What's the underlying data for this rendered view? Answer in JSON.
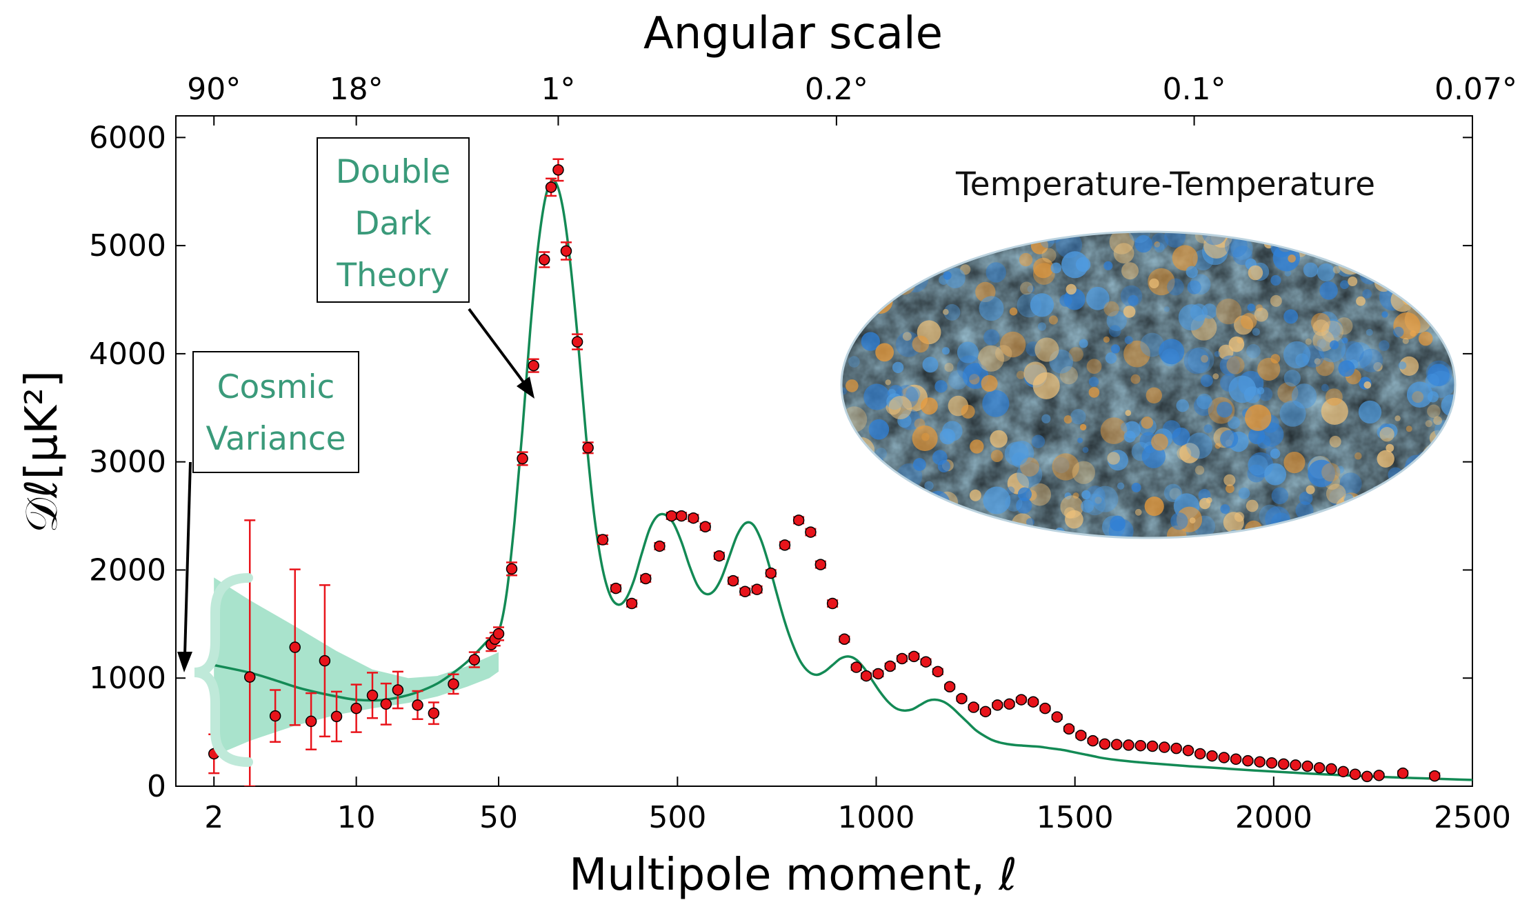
{
  "chart_data": {
    "type": "scatter",
    "title": "",
    "top_axis": {
      "label": "Angular scale",
      "ticks": [
        {
          "label": "90°",
          "at_multipole": 2
        },
        {
          "label": "18°",
          "at_multipole": 10
        },
        {
          "label": "1°",
          "at_multipole": 200
        },
        {
          "label": "0.2°",
          "at_multipole": 900
        },
        {
          "label": "0.1°",
          "at_multipole": 1800
        },
        {
          "label": "0.07°",
          "at_multipole": 2500
        }
      ]
    },
    "xlabel": "Multipole moment, ℓ",
    "ylabel": "𝒟ℓ[μK²]",
    "x_scale": "log below ℓ=50, linear from ℓ=50 to 2500",
    "xlim": [
      1.3,
      2500
    ],
    "ylim": [
      0,
      6200
    ],
    "xticks": [
      {
        "label": "2",
        "value": 2
      },
      {
        "label": "10",
        "value": 10
      },
      {
        "label": "50",
        "value": 50
      },
      {
        "label": "500",
        "value": 500
      },
      {
        "label": "1000",
        "value": 1000
      },
      {
        "label": "1500",
        "value": 1500
      },
      {
        "label": "2000",
        "value": 2000
      },
      {
        "label": "2500",
        "value": 2500
      }
    ],
    "yticks": [
      {
        "label": "0",
        "value": 0
      },
      {
        "label": "1000",
        "value": 1000
      },
      {
        "label": "2000",
        "value": 2000
      },
      {
        "label": "3000",
        "value": 3000
      },
      {
        "label": "4000",
        "value": 4000
      },
      {
        "label": "5000",
        "value": 5000
      },
      {
        "label": "6000",
        "value": 6000
      }
    ],
    "grid": false,
    "colors": {
      "data_points": "#e8141b",
      "error_bars": "#e8141b",
      "theory_curve": "#138a55",
      "cosmic_variance_band": "#a9e3cc",
      "annotation_text": "#3a9a7a"
    },
    "series": [
      {
        "type": "points_with_errors",
        "x": [
          2,
          3,
          4,
          5,
          6,
          7,
          8,
          10,
          12,
          14,
          16,
          20,
          24,
          30,
          38,
          46,
          48,
          50,
          83,
          110,
          138,
          165,
          182,
          200,
          220,
          248,
          275,
          312,
          345,
          385,
          420,
          455,
          485,
          510,
          540,
          570,
          605,
          640,
          670,
          700,
          735,
          770,
          805,
          835,
          860,
          890,
          920,
          950,
          975,
          1005,
          1035,
          1065,
          1095,
          1125,
          1155,
          1185,
          1215,
          1245,
          1275,
          1305,
          1335,
          1365,
          1395,
          1425,
          1455,
          1485,
          1515,
          1545,
          1575,
          1605,
          1635,
          1665,
          1695,
          1725,
          1755,
          1785,
          1815,
          1845,
          1875,
          1905,
          1935,
          1965,
          1995,
          2025,
          2055,
          2085,
          2115,
          2145,
          2175,
          2205,
          2235,
          2265,
          2325,
          2405
        ],
        "y": [
          300,
          1010,
          650,
          1285,
          600,
          1160,
          645,
          720,
          840,
          760,
          890,
          750,
          675,
          945,
          1170,
          1310,
          1360,
          1410,
          2010,
          3030,
          3890,
          4870,
          5540,
          5700,
          4950,
          4110,
          3130,
          2280,
          1830,
          1690,
          1920,
          2220,
          2500,
          2500,
          2480,
          2400,
          2130,
          1900,
          1800,
          1820,
          1970,
          2230,
          2460,
          2350,
          2050,
          1690,
          1360,
          1100,
          1020,
          1040,
          1110,
          1180,
          1200,
          1150,
          1060,
          920,
          810,
          730,
          690,
          750,
          760,
          800,
          780,
          720,
          640,
          530,
          470,
          420,
          390,
          385,
          380,
          375,
          370,
          360,
          350,
          330,
          300,
          280,
          265,
          250,
          235,
          225,
          215,
          205,
          195,
          185,
          170,
          160,
          135,
          110,
          90,
          100,
          120,
          95
        ],
        "yerr": [
          180,
          1450,
          240,
          720,
          260,
          700,
          230,
          220,
          210,
          190,
          170,
          130,
          100,
          90,
          70,
          60,
          60,
          60,
          60,
          60,
          60,
          70,
          80,
          100,
          80,
          70,
          50,
          40,
          30,
          30,
          30,
          30,
          30,
          30,
          30,
          30,
          30,
          30,
          30,
          30,
          30,
          30,
          30,
          30,
          30,
          30,
          25,
          25,
          25,
          25,
          25,
          25,
          25,
          25,
          25,
          20,
          20,
          20,
          20,
          20,
          20,
          20,
          20,
          20,
          20,
          20,
          20,
          20,
          15,
          15,
          15,
          15,
          15,
          15,
          15,
          15,
          15,
          15,
          15,
          15,
          15,
          15,
          15,
          15,
          15,
          15,
          15,
          15,
          15,
          15,
          15,
          15,
          20,
          25
        ]
      },
      {
        "type": "theory_curve",
        "x": [
          2,
          3,
          4,
          5,
          6,
          8,
          10,
          13,
          16,
          20,
          25,
          30,
          35,
          40,
          45,
          50,
          70,
          90,
          110,
          130,
          150,
          170,
          190,
          210,
          230,
          250,
          270,
          290,
          310,
          330,
          350,
          370,
          390,
          410,
          430,
          450,
          470,
          490,
          510,
          530,
          550,
          570,
          590,
          610,
          630,
          650,
          670,
          690,
          710,
          730,
          750,
          770,
          790,
          810,
          830,
          850,
          870,
          890,
          910,
          930,
          950,
          970,
          990,
          1010,
          1030,
          1050,
          1070,
          1090,
          1110,
          1130,
          1150,
          1170,
          1190,
          1210,
          1230,
          1250,
          1270,
          1290,
          1310,
          1330,
          1350,
          1370,
          1390,
          1410,
          1430,
          1450,
          1470,
          1490,
          1510,
          1530,
          1550,
          1570,
          1600,
          1650,
          1700,
          1750,
          1800,
          1850,
          1900,
          1950,
          2000,
          2050,
          2100,
          2150,
          2200,
          2250,
          2300,
          2350,
          2400,
          2450,
          2500
        ],
        "y": [
          1120,
          1050,
          980,
          920,
          880,
          830,
          800,
          795,
          820,
          870,
          950,
          1050,
          1150,
          1260,
          1360,
          1430,
          1780,
          2450,
          3300,
          4240,
          5010,
          5480,
          5600,
          5380,
          4850,
          4100,
          3240,
          2520,
          2040,
          1770,
          1680,
          1730,
          1900,
          2150,
          2380,
          2500,
          2510,
          2430,
          2260,
          2040,
          1860,
          1780,
          1800,
          1920,
          2120,
          2320,
          2430,
          2420,
          2280,
          2050,
          1780,
          1520,
          1310,
          1150,
          1060,
          1030,
          1060,
          1120,
          1180,
          1200,
          1170,
          1090,
          980,
          870,
          780,
          720,
          700,
          710,
          750,
          790,
          800,
          780,
          730,
          660,
          590,
          520,
          470,
          430,
          405,
          390,
          380,
          375,
          370,
          365,
          355,
          345,
          335,
          320,
          305,
          290,
          275,
          260,
          245,
          225,
          210,
          195,
          182,
          170,
          158,
          146,
          135,
          125,
          115,
          106,
          97,
          89,
          82,
          76,
          70,
          64,
          58
        ]
      },
      {
        "type": "cosmic_variance_band",
        "x": [
          2,
          3,
          5,
          8,
          12,
          18,
          25,
          35,
          45,
          50
        ],
        "upper": [
          1930,
          1720,
          1480,
          1250,
          1080,
          1000,
          1020,
          1110,
          1200,
          1240
        ],
        "lower": [
          280,
          420,
          560,
          660,
          720,
          770,
          830,
          920,
          1000,
          1060
        ]
      }
    ],
    "annotations": [
      {
        "text": "Double Dark Theory",
        "lines": [
          "Double",
          "Dark",
          "Theory"
        ],
        "arrow_to_multipole": 75
      },
      {
        "text": "Cosmic Variance",
        "lines": [
          "Cosmic",
          "Variance"
        ],
        "arrow_to": "y-axis near 1100"
      },
      {
        "text": "Temperature-Temperature"
      }
    ],
    "inset": {
      "label": "Temperature-Temperature",
      "content": "CMB temperature anisotropy all-sky map (Mollweide projection)"
    }
  }
}
